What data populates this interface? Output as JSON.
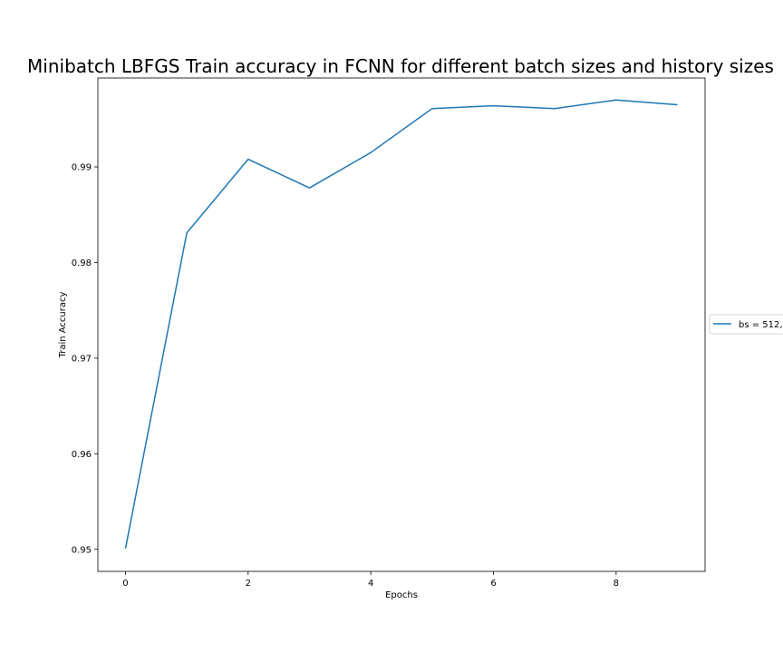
{
  "chart_data": {
    "type": "line",
    "title": "Minibatch LBFGS Train accuracy in FCNN for different batch sizes and history sizes",
    "xlabel": "Epochs",
    "ylabel": "Train Accuracy",
    "xlim": [
      -0.45,
      9.45
    ],
    "ylim": [
      0.9477,
      0.9993
    ],
    "x_ticks": [
      0,
      2,
      4,
      6,
      8
    ],
    "y_ticks": [
      0.95,
      0.96,
      0.97,
      0.98,
      0.99
    ],
    "y_tick_labels": [
      "0.95",
      "0.96",
      "0.97",
      "0.98",
      "0.99"
    ],
    "grid": false,
    "legend_position": "center-right-outside",
    "series": [
      {
        "name": "bs = 512,",
        "color": "#1f77b4",
        "x": [
          0,
          1,
          2,
          3,
          4,
          5,
          6,
          7,
          8,
          9
        ],
        "y": [
          0.9501,
          0.9831,
          0.9908,
          0.9878,
          0.9915,
          0.9961,
          0.9964,
          0.9961,
          0.997,
          0.9965
        ]
      }
    ]
  }
}
